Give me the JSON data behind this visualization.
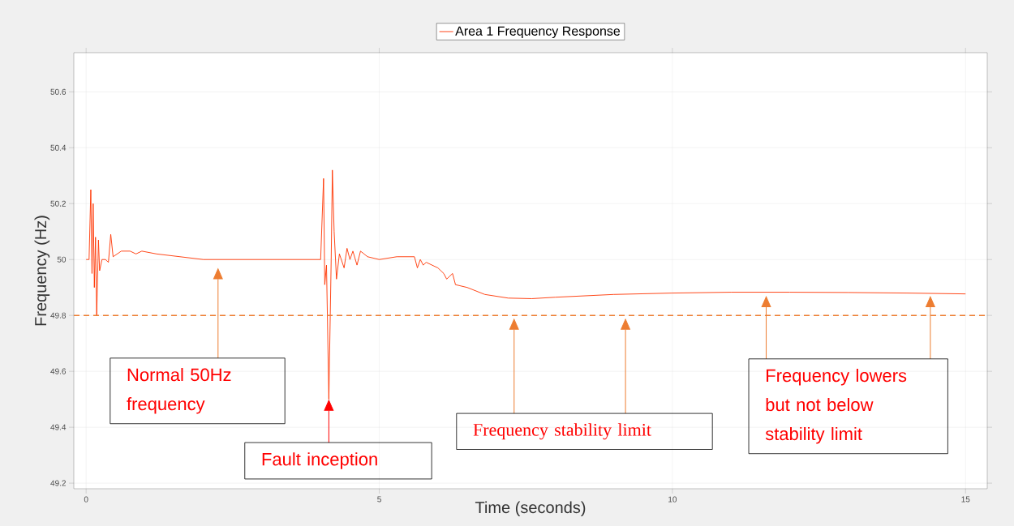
{
  "chart_data": {
    "type": "line",
    "xlabel": "Time (seconds)",
    "ylabel": "Frequency (Hz)",
    "xlim": [
      -0.21,
      15.37
    ],
    "ylim": [
      49.18,
      50.74
    ],
    "xticks": [
      0,
      5,
      10,
      15
    ],
    "yticks": [
      49.2,
      49.4,
      49.6,
      49.8,
      {
        "value": 50.0,
        "label": "50"
      },
      50.2,
      50.4,
      50.6
    ],
    "grid": true,
    "legend": "top",
    "series": [
      {
        "name": "Area 1 Frequency Response",
        "color": "#ff3300",
        "x": [
          0.0,
          0.05,
          0.08,
          0.1,
          0.12,
          0.14,
          0.16,
          0.18,
          0.21,
          0.23,
          0.27,
          0.33,
          0.38,
          0.42,
          0.46,
          0.6,
          0.75,
          0.85,
          0.95,
          1.2,
          1.6,
          2.0,
          3.0,
          3.9,
          4.0,
          4.05,
          4.07,
          4.1,
          4.14,
          4.18,
          4.2,
          4.23,
          4.27,
          4.32,
          4.4,
          4.45,
          4.5,
          4.55,
          4.62,
          4.68,
          4.8,
          5.0,
          5.3,
          5.6,
          5.65,
          5.7,
          5.75,
          5.8,
          6.0,
          6.1,
          6.15,
          6.25,
          6.3,
          6.5,
          6.8,
          7.2,
          7.6,
          8.0,
          9.0,
          10.0,
          11.0,
          12.0,
          13.0,
          14.0,
          15.0
        ],
        "values": [
          50.0,
          50.0,
          50.25,
          49.95,
          50.2,
          49.9,
          50.08,
          49.8,
          50.07,
          49.96,
          50.0,
          50.0,
          49.99,
          50.09,
          50.01,
          50.03,
          50.03,
          50.02,
          50.03,
          50.02,
          50.01,
          50.0,
          50.0,
          50.0,
          50.0,
          50.29,
          49.91,
          49.98,
          49.5,
          50.0,
          50.32,
          50.1,
          49.93,
          50.02,
          49.97,
          50.04,
          50.0,
          50.03,
          49.98,
          50.03,
          50.01,
          50.0,
          50.01,
          50.01,
          49.97,
          50.0,
          49.98,
          49.99,
          49.97,
          49.95,
          49.93,
          49.95,
          49.91,
          49.9,
          49.875,
          49.862,
          49.86,
          49.865,
          49.875,
          49.88,
          49.883,
          49.883,
          49.882,
          49.88,
          49.877
        ]
      }
    ],
    "ref_lines": [
      {
        "axis": "y",
        "value": 49.8,
        "color": "#ed7d31",
        "line_style": "dashed"
      }
    ],
    "annotations": [
      "Normal 50Hz frequency",
      {
        "text": "Fault inception",
        "x": 4.14,
        "y": 49.5
      },
      "Frequency stability limit",
      "Frequency lowers but not below stability limit"
    ]
  }
}
